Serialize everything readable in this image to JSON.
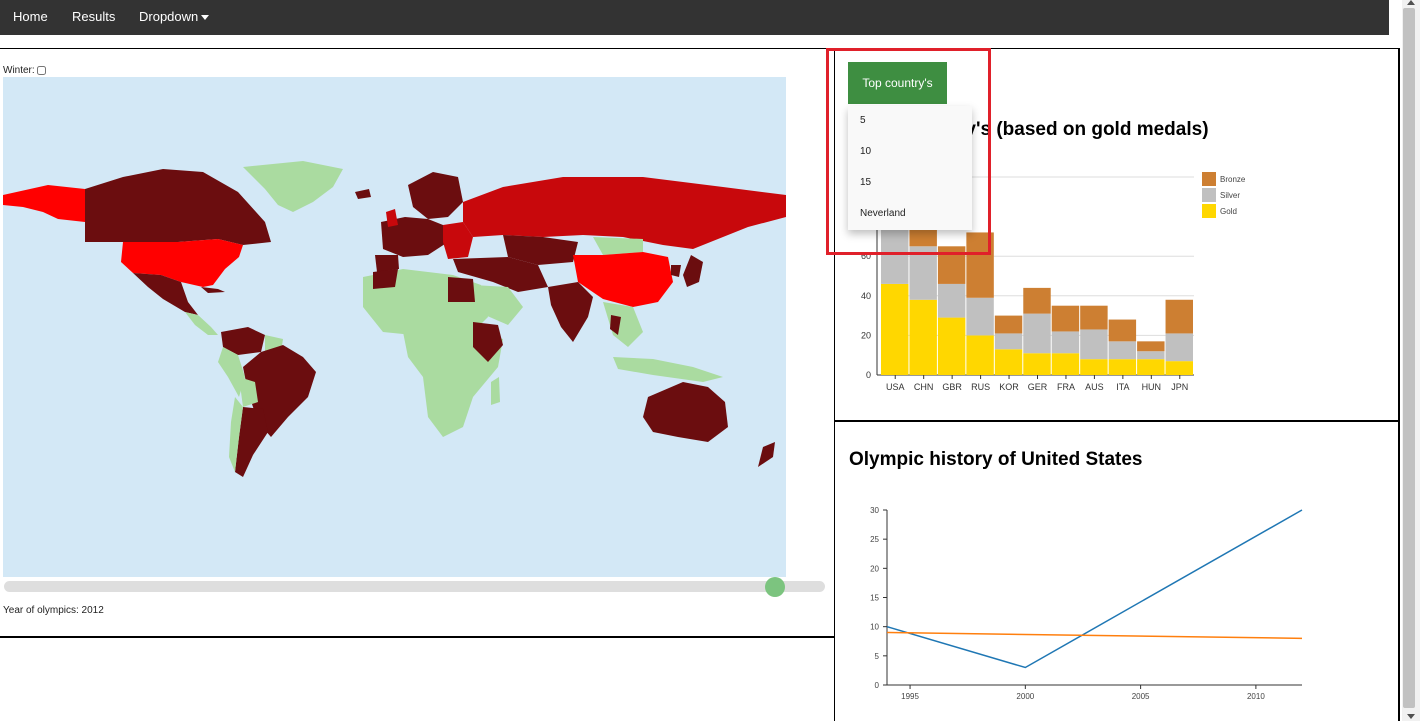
{
  "navbar": {
    "items": [
      {
        "label": "Home"
      },
      {
        "label": "Results"
      },
      {
        "label": "Dropdown"
      }
    ]
  },
  "map_panel": {
    "winter_label": "Winter:",
    "winter_checked": false,
    "year_label": "Year of olympics: 2012",
    "slider_value_fraction": 0.95,
    "colors": {
      "ocean": "#d3e8f6",
      "no_data": "#aadba0",
      "dark": "#6b0d0f",
      "mid": "#c8080c",
      "bright": "#ff0000"
    }
  },
  "top_panel": {
    "button_label": "Top country's",
    "dropdown_options": [
      "5",
      "10",
      "15",
      "Neverland"
    ],
    "title_visible": "ry's (based on gold medals)"
  },
  "bottom_panel": {
    "title": "Olympic history of United States"
  },
  "chart_data": [
    {
      "type": "bar",
      "stacked": true,
      "title": "ry's (based on gold medals)",
      "categories": [
        "USA",
        "CHN",
        "GBR",
        "RUS",
        "KOR",
        "GER",
        "FRA",
        "AUS",
        "ITA",
        "HUN",
        "JPN"
      ],
      "series": [
        {
          "name": "Gold",
          "color": "#ffd700",
          "values": [
            46,
            38,
            29,
            20,
            13,
            11,
            11,
            8,
            8,
            8,
            7
          ]
        },
        {
          "name": "Silver",
          "color": "#c0c0c0",
          "values": [
            29,
            27,
            17,
            19,
            8,
            20,
            11,
            15,
            9,
            4,
            14
          ]
        },
        {
          "name": "Bronze",
          "color": "#cd7f32",
          "values": [
            29,
            23,
            19,
            33,
            9,
            13,
            13,
            12,
            11,
            5,
            17
          ]
        }
      ],
      "y_ticks": [
        0,
        20,
        40,
        60
      ],
      "ylim": [
        0,
        100
      ],
      "legend": [
        "Bronze",
        "Silver",
        "Gold"
      ],
      "legend_position": "right"
    },
    {
      "type": "line",
      "x_ticks": [
        1995,
        2000,
        2005,
        2010
      ],
      "y_ticks": [
        0,
        5,
        10,
        15,
        20,
        25,
        30
      ],
      "xlim": [
        1994,
        2012
      ],
      "ylim": [
        0,
        30
      ],
      "series": [
        {
          "color": "#1f77b4",
          "points": [
            [
              1994,
              10
            ],
            [
              2000,
              3
            ],
            [
              2012,
              30
            ]
          ]
        },
        {
          "color": "#ff7f0e",
          "points": [
            [
              1994,
              9
            ],
            [
              2012,
              8
            ]
          ]
        }
      ]
    }
  ]
}
